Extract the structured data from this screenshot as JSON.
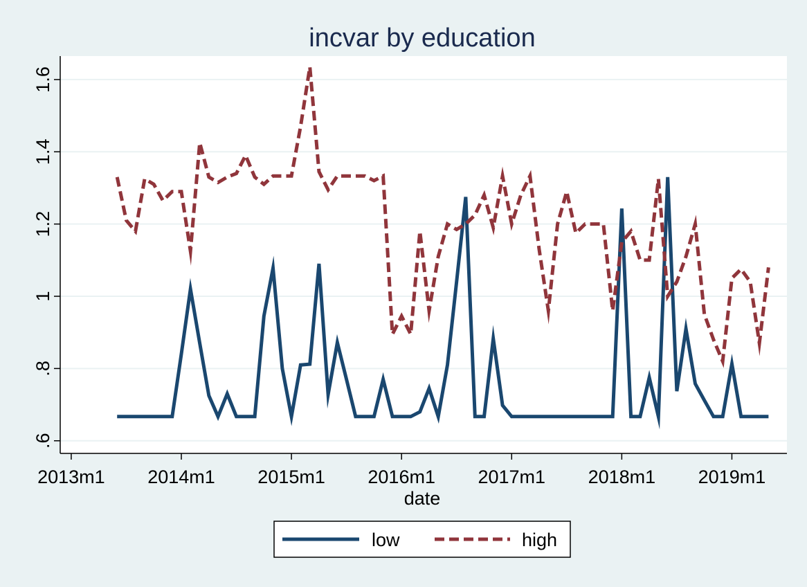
{
  "chart_data": {
    "type": "line",
    "title": "incvar by education",
    "xlabel": "date",
    "ylabel": "",
    "x_ticks": [
      {
        "value": 2013,
        "label": "2013m1"
      },
      {
        "value": 2014,
        "label": "2014m1"
      },
      {
        "value": 2015,
        "label": "2015m1"
      },
      {
        "value": 2016,
        "label": "2016m1"
      },
      {
        "value": 2017,
        "label": "2017m1"
      },
      {
        "value": 2018,
        "label": "2018m1"
      },
      {
        "value": 2019,
        "label": "2019m1"
      }
    ],
    "y_ticks": [
      {
        "value": 0.6,
        "label": ".6"
      },
      {
        "value": 0.8,
        "label": ".8"
      },
      {
        "value": 1.0,
        "label": "1"
      },
      {
        "value": 1.2,
        "label": "1.2"
      },
      {
        "value": 1.4,
        "label": "1.4"
      },
      {
        "value": 1.6,
        "label": "1.6"
      }
    ],
    "xlim": [
      2012.9,
      2019.5
    ],
    "ylim": [
      0.565,
      1.665
    ],
    "grid": true,
    "legend_position": "bottom",
    "x": [
      2013.417,
      2013.5,
      2013.583,
      2013.667,
      2013.75,
      2013.833,
      2013.917,
      2014.0,
      2014.083,
      2014.167,
      2014.25,
      2014.333,
      2014.417,
      2014.5,
      2014.583,
      2014.667,
      2014.75,
      2014.833,
      2014.917,
      2015.0,
      2015.083,
      2015.167,
      2015.25,
      2015.333,
      2015.417,
      2015.5,
      2015.583,
      2015.667,
      2015.75,
      2015.833,
      2015.917,
      2016.0,
      2016.083,
      2016.167,
      2016.25,
      2016.333,
      2016.417,
      2016.5,
      2016.583,
      2016.667,
      2016.75,
      2016.833,
      2016.917,
      2017.0,
      2017.083,
      2017.167,
      2017.25,
      2017.333,
      2017.417,
      2017.5,
      2017.583,
      2017.667,
      2017.75,
      2017.833,
      2017.917,
      2018.0,
      2018.083,
      2018.167,
      2018.25,
      2018.333,
      2018.417,
      2018.5,
      2018.583,
      2018.667,
      2018.75,
      2018.833,
      2018.917,
      2019.0,
      2019.083,
      2019.167,
      2019.25,
      2019.333
    ],
    "series": [
      {
        "name": "low",
        "color": "#1a476f",
        "dash": "solid",
        "values": [
          0.667,
          0.667,
          0.667,
          0.667,
          0.667,
          0.667,
          0.667,
          0.84,
          1.02,
          0.87,
          0.725,
          0.667,
          0.73,
          0.667,
          0.667,
          0.667,
          0.945,
          1.078,
          0.8,
          0.667,
          0.81,
          0.812,
          1.09,
          0.728,
          0.872,
          0.77,
          0.667,
          0.667,
          0.667,
          0.77,
          0.667,
          0.667,
          0.667,
          0.68,
          0.745,
          0.667,
          0.81,
          1.04,
          1.275,
          0.667,
          0.667,
          0.883,
          0.698,
          0.667,
          0.667,
          0.667,
          0.667,
          0.667,
          0.667,
          0.667,
          0.667,
          0.667,
          0.667,
          0.667,
          0.667,
          1.243,
          0.667,
          0.667,
          0.775,
          0.667,
          1.33,
          0.737,
          0.91,
          0.758,
          0.712,
          0.667,
          0.667,
          0.813,
          0.667,
          0.667,
          0.667,
          0.667
        ]
      },
      {
        "name": "high",
        "color": "#90353b",
        "dash": "dashed",
        "values": [
          1.33,
          1.21,
          1.18,
          1.325,
          1.31,
          1.265,
          1.29,
          1.29,
          1.125,
          1.425,
          1.33,
          1.315,
          1.33,
          1.34,
          1.39,
          1.33,
          1.31,
          1.333,
          1.333,
          1.333,
          1.47,
          1.635,
          1.345,
          1.295,
          1.333,
          1.333,
          1.333,
          1.333,
          1.32,
          1.333,
          0.895,
          0.945,
          0.895,
          1.18,
          0.96,
          1.11,
          1.2,
          1.185,
          1.2,
          1.225,
          1.28,
          1.19,
          1.333,
          1.2,
          1.28,
          1.333,
          1.13,
          0.96,
          1.2,
          1.29,
          1.175,
          1.2,
          1.2,
          1.2,
          0.96,
          1.15,
          1.18,
          1.1,
          1.1,
          1.325,
          1.0,
          1.04,
          1.11,
          1.2,
          0.95,
          0.88,
          0.82,
          1.05,
          1.075,
          1.04,
          0.87,
          1.08
        ]
      }
    ]
  }
}
